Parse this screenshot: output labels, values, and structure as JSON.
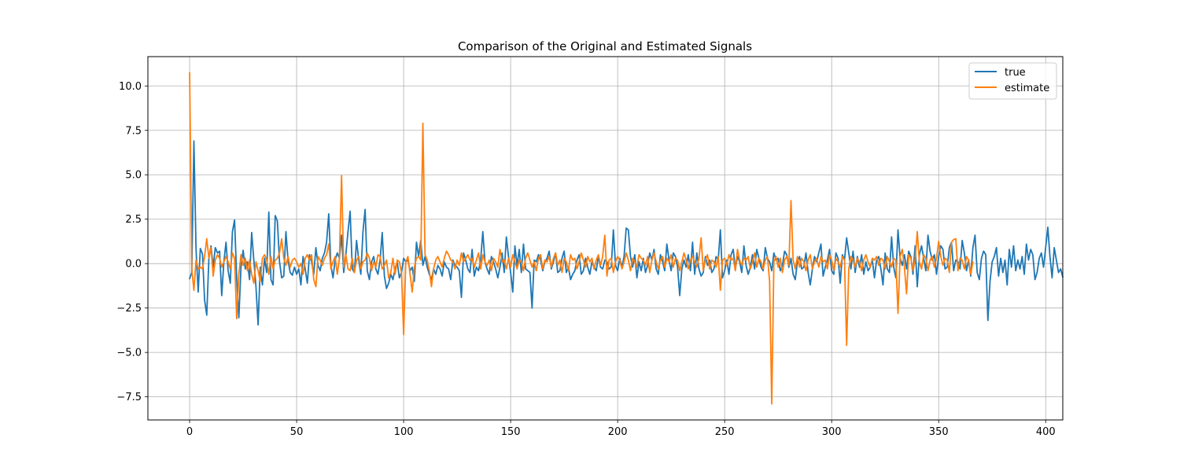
{
  "chart_data": {
    "type": "line",
    "title": "Comparison of the Original and Estimated Signals",
    "xlabel": "",
    "ylabel": "",
    "xlim": [
      -19.5,
      408
    ],
    "ylim": [
      -8.8,
      11.65
    ],
    "xticks": [
      0,
      50,
      100,
      150,
      200,
      250,
      300,
      350,
      400
    ],
    "yticks": [
      -7.5,
      -5.0,
      -2.5,
      0.0,
      2.5,
      5.0,
      7.5,
      10.0
    ],
    "ytick_labels": [
      "−7.5",
      "−5.0",
      "−2.5",
      "0.0",
      "2.5",
      "5.0",
      "7.5",
      "10.0"
    ],
    "grid": true,
    "legend": "top-right",
    "series": [
      {
        "name": "true",
        "color": "#1f77b4",
        "x_start": 0,
        "x_step": 1,
        "values": [
          -0.85,
          -0.5,
          6.9,
          0.8,
          -1.6,
          0.85,
          0.55,
          -2.05,
          -2.9,
          0.3,
          1.0,
          -0.2,
          0.9,
          0.6,
          0.7,
          -1.8,
          0.1,
          1.2,
          -0.4,
          -1.1,
          1.8,
          2.45,
          -0.8,
          -3.05,
          -0.2,
          0.75,
          -0.3,
          0.1,
          -0.9,
          1.75,
          0.2,
          -1.3,
          -3.45,
          -0.2,
          -1.2,
          0.3,
          -0.5,
          2.9,
          -0.9,
          -1.2,
          2.7,
          2.4,
          0.1,
          -0.8,
          -0.7,
          1.8,
          0.15,
          -0.5,
          -0.65,
          -0.2,
          -0.6,
          -0.3,
          -1.2,
          0.4,
          -0.3,
          -1.1,
          0.5,
          0.1,
          -0.6,
          0.9,
          -0.1,
          -0.4,
          0.3,
          0.6,
          1.2,
          2.8,
          -0.1,
          -0.8,
          0.2,
          0.6,
          0.3,
          1.6,
          -0.5,
          0.5,
          1.8,
          2.95,
          -0.3,
          -0.5,
          1.3,
          0.2,
          -0.6,
          1.8,
          3.05,
          -0.4,
          -0.9,
          0.1,
          0.4,
          -0.3,
          -0.6,
          0.2,
          1.75,
          -0.7,
          -1.4,
          -1.1,
          -0.6,
          -0.9,
          -0.3,
          0.1,
          -0.8,
          -0.5,
          0.3,
          0.1,
          0.2,
          -0.4,
          -0.2,
          -1.0,
          1.2,
          0.4,
          1.3,
          -0.1,
          0.4,
          -0.2,
          -0.6,
          -0.9,
          -0.3,
          -0.6,
          -0.1,
          -0.3,
          -0.7,
          0.1,
          -0.2,
          -0.3,
          -0.9,
          0.2,
          -0.1,
          -0.2,
          -0.4,
          -1.9,
          0.6,
          0.2,
          -0.3,
          -0.5,
          0.8,
          -0.7,
          -0.2,
          -0.4,
          0.2,
          1.8,
          0.1,
          -0.3,
          -0.6,
          0.4,
          0.1,
          -0.3,
          -0.8,
          -0.2,
          0.6,
          -0.5,
          1.5,
          0.4,
          -0.5,
          -1.6,
          1.0,
          -0.1,
          0.8,
          -0.5,
          1.1,
          -0.3,
          -0.4,
          -0.5,
          -2.5,
          0.2,
          0.1,
          0.5,
          0.2,
          -0.4,
          0.1,
          0.3,
          0.7,
          -0.3,
          0.1,
          0.6,
          -0.5,
          -0.4,
          0.3,
          0.7,
          -0.5,
          -0.2,
          -0.9,
          -0.6,
          -0.4,
          0.2,
          0.5,
          -0.6,
          -0.4,
          0.3,
          -0.2,
          -0.6,
          0.1,
          -0.2,
          -0.4,
          0.4,
          -0.2,
          -0.3,
          0.2,
          0.1,
          -0.3,
          -0.2,
          1.9,
          -0.1,
          -0.4,
          0.3,
          -0.2,
          0.4,
          2.0,
          1.9,
          0.4,
          -0.2,
          0.5,
          -0.8,
          0.1,
          -0.4,
          0.3,
          -0.5,
          -0.1,
          0.6,
          0.2,
          0.8,
          -0.3,
          -0.6,
          0.5,
          0.1,
          -0.4,
          1.1,
          0.2,
          -0.4,
          0.6,
          0.4,
          -0.2,
          -1.8,
          -0.3,
          0.2,
          -0.2,
          0.5,
          -0.4,
          1.2,
          -0.6,
          0.6,
          -0.3,
          -0.7,
          -0.5,
          0.4,
          -0.1,
          0.2,
          -0.5,
          -0.3,
          0.4,
          0.2,
          1.9,
          -0.8,
          -0.4,
          0.2,
          -0.6,
          0.5,
          0.8,
          -0.3,
          0.4,
          0.1,
          -0.5,
          1.0,
          -0.1,
          -0.6,
          -0.2,
          0.5,
          -0.3,
          0.8,
          0.3,
          -0.2,
          -0.4,
          0.9,
          0.3,
          0.1,
          -0.4,
          0.6,
          0.2,
          0.3,
          -0.4,
          -0.1,
          0.7,
          0.5,
          -0.2,
          0.3,
          -0.6,
          -0.9,
          0.1,
          0.4,
          -0.3,
          -0.2,
          0.6,
          -0.5,
          -1.2,
          -0.3,
          0.4,
          0.1,
          0.6,
          1.1,
          -0.7,
          -0.2,
          0.2,
          0.8,
          -0.4,
          -0.6,
          0.6,
          0.3,
          -1.1,
          0.5,
          0.2,
          1.45,
          0.6,
          -0.3,
          0.7,
          -0.5,
          0.4,
          -0.2,
          0.5,
          -0.6,
          0.1,
          -0.4,
          -0.2,
          0.2,
          -0.8,
          0.2,
          0.4,
          -0.3,
          -1.2,
          0.6,
          -0.3,
          -0.5,
          1.5,
          -0.2,
          -0.8,
          1.9,
          0.3,
          -0.1,
          0.5,
          -0.3,
          0.7,
          0.4,
          -0.6,
          1.0,
          -1.3,
          0.5,
          1.0,
          0.3,
          -0.4,
          1.6,
          0.7,
          0.2,
          0.5,
          -0.6,
          0.4,
          1.0,
          0.8,
          -0.3,
          -0.2,
          0.9,
          1.2,
          -0.4,
          0.2,
          0.1,
          -0.3,
          1.3,
          0.6,
          -0.4,
          0.2,
          -0.7,
          0.9,
          1.6,
          -0.5,
          -0.9,
          0.3,
          0.7,
          0.5,
          -3.2,
          -1.0,
          0.1,
          0.4,
          0.9,
          -0.7,
          0.3,
          -0.5,
          0.2,
          -1.2,
          0.8,
          -0.2,
          1.0,
          -0.4,
          0.2,
          -0.3,
          0.4,
          -0.6,
          1.1,
          0.2,
          0.8,
          0.5,
          -0.9,
          -0.5,
          0.3,
          0.6,
          -0.2,
          0.9,
          2.05,
          0.4,
          -0.8,
          0.9,
          0.2,
          -0.5,
          -0.3,
          -0.75
        ]
      },
      {
        "name": "estimate",
        "color": "#ff7f0e",
        "x_start": 0,
        "x_step": 1,
        "values": [
          10.75,
          -0.3,
          -1.5,
          0.2,
          -0.3,
          -0.2,
          -0.3,
          0.4,
          1.4,
          0.3,
          0.9,
          -0.7,
          0.2,
          0.5,
          0.3,
          -0.2,
          0.1,
          0.4,
          0.1,
          -0.3,
          0.6,
          0.3,
          -3.1,
          -0.6,
          0.5,
          -0.1,
          0.3,
          -0.4,
          0.2,
          -0.6,
          -1.1,
          0.1,
          -0.4,
          -1.0,
          0.3,
          0.5,
          0.2,
          -0.6,
          0.4,
          -0.3,
          0.2,
          0.3,
          0.6,
          1.4,
          0.3,
          -0.1,
          0.4,
          -0.2,
          0.2,
          0.3,
          0.1,
          -0.2,
          0.0,
          -0.6,
          0.3,
          0.5,
          0.2,
          0.5,
          -0.9,
          -1.3,
          0.4,
          0.2,
          -0.1,
          0.3,
          0.5,
          1.1,
          -0.3,
          0.1,
          0.4,
          -0.6,
          0.3,
          4.95,
          -0.2,
          0.5,
          -0.3,
          -0.4,
          0.3,
          -0.5,
          0.2,
          0.4,
          -0.3,
          0.1,
          0.2,
          0.6,
          0.3,
          -0.4,
          0.1,
          -0.2,
          0.5,
          0.4,
          -0.3,
          -0.1,
          0.2,
          -0.8,
          -0.5,
          0.3,
          -0.6,
          0.2,
          0.1,
          -0.5,
          -4.0,
          0.1,
          0.4,
          -0.6,
          -1.6,
          -0.2,
          0.3,
          0.4,
          0.2,
          7.9,
          0.5,
          0.2,
          -0.4,
          -1.3,
          -0.3,
          0.2,
          0.4,
          0.1,
          -0.2,
          0.3,
          0.7,
          0.5,
          0.2,
          0.1,
          -0.3,
          0.2,
          -0.1,
          0.6,
          0.1,
          0.3,
          0.5,
          0.2,
          0.3,
          -0.2,
          0.2,
          0.6,
          -0.3,
          0.5,
          0.1,
          -0.1,
          0.2,
          -0.4,
          0.3,
          0.1,
          -0.2,
          0.8,
          0.1,
          0.2,
          -0.3,
          0.3,
          -0.2,
          0.5,
          0.1,
          -0.3,
          0.2,
          0.1,
          -0.4,
          0.3,
          0.6,
          0.2,
          -0.2,
          0.1,
          -0.4,
          0.3,
          0.5,
          -0.3,
          0.2,
          0.1,
          0.4,
          -0.2,
          0.3,
          0.6,
          -0.1,
          0.2,
          -0.5,
          0.3,
          0.1,
          -0.4,
          0.5,
          0.2,
          0.3,
          -0.3,
          0.1,
          0.6,
          0.2,
          -0.2,
          0.4,
          0.1,
          0.3,
          -0.3,
          0.2,
          0.5,
          -0.1,
          0.4,
          1.6,
          -0.7,
          0.2,
          0.3,
          -0.5,
          0.1,
          0.4,
          0.2,
          -0.3,
          0.1,
          0.6,
          0.2,
          -0.4,
          0.3,
          0.1,
          -0.2,
          0.5,
          0.3,
          0.2,
          -0.1,
          0.4,
          -0.5,
          0.2,
          0.6,
          0.1,
          -0.3,
          0.2,
          0.4,
          -0.2,
          0.3,
          0.1,
          0.5,
          -0.2,
          0.3,
          0.2,
          -0.4,
          0.1,
          0.6,
          0.2,
          -0.3,
          0.2,
          0.4,
          0.1,
          -0.2,
          0.3,
          1.45,
          -0.4,
          0.2,
          0.5,
          -0.3,
          0.2,
          0.1,
          -0.2,
          0.4,
          -1.5,
          0.2,
          0.3,
          -0.1,
          0.5,
          0.2,
          0.3,
          -0.4,
          0.8,
          0.2,
          -0.1,
          0.3,
          0.2,
          0.4,
          -0.3,
          0.1,
          0.6,
          -0.2,
          0.3,
          0.1,
          -0.3,
          0.2,
          0.4,
          -1.0,
          -7.9,
          0.1,
          0.4,
          -0.2,
          0.3,
          -0.5,
          0.2,
          0.4,
          -0.1,
          3.55,
          0.2,
          -0.3,
          0.4,
          -0.2,
          0.3,
          0.1,
          -0.4,
          0.2,
          0.5,
          -0.3,
          0.1,
          0.3,
          -0.2,
          0.4,
          0.1,
          0.2,
          -0.3,
          0.5,
          0.2,
          -0.4,
          0.3,
          0.1,
          -0.2,
          0.4,
          0.2,
          -4.6,
          -0.3,
          0.4,
          0.2,
          -0.2,
          0.3,
          0.1,
          -0.4,
          0.2,
          0.5,
          0.1,
          -0.2,
          0.3,
          0.2,
          0.4,
          -0.1,
          0.3,
          0.2,
          -0.3,
          0.4,
          0.1,
          -0.2,
          0.3,
          0.2,
          -2.8,
          0.4,
          0.8,
          -0.2,
          -1.7,
          0.5,
          0.3,
          -0.4,
          0.2,
          1.8,
          0.1,
          -0.3,
          0.5,
          0.3,
          -0.4,
          0.2,
          0.4,
          -0.2,
          0.3,
          1.25,
          0.4,
          -0.1,
          0.3,
          0.2,
          -0.5,
          1.2,
          1.35,
          1.4,
          -0.4,
          0.3,
          0.2,
          -0.3,
          0.4,
          0.2,
          -0.6,
          0.1
        ]
      }
    ]
  }
}
